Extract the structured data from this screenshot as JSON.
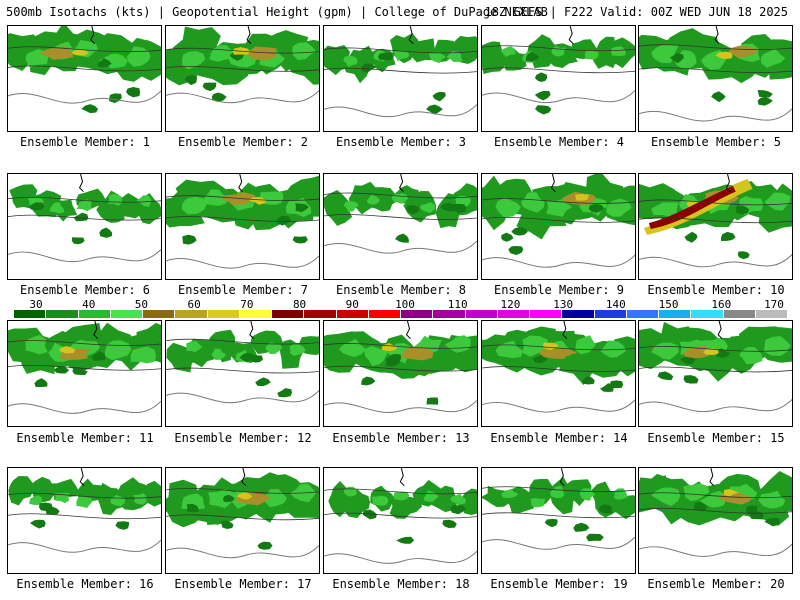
{
  "header": {
    "left": "500mb Isotachs (kts) | Geopotential Height (gpm) | College of DuPage NEXLAB",
    "right": "18Z GEFS | F222 Valid: 00Z WED JUN 18 2025"
  },
  "colorbar": {
    "labels": [
      "30",
      "40",
      "50",
      "60",
      "70",
      "80",
      "90",
      "100",
      "110",
      "120",
      "130",
      "140",
      "150",
      "160",
      "170"
    ],
    "colors": [
      "#006400",
      "#1a8c1a",
      "#2db82d",
      "#4fe04f",
      "#8b6a14",
      "#b8a22a",
      "#d9cc1c",
      "#ffff33",
      "#7a0000",
      "#a30000",
      "#cc0000",
      "#ff0000",
      "#8b008b",
      "#a000a0",
      "#c400c4",
      "#e000e0",
      "#ff00ff",
      "#0000a0",
      "#1a3ce0",
      "#3377ff",
      "#1ab0e6",
      "#33ddff",
      "#888888",
      "#bbbbbb"
    ]
  },
  "panels": [
    {
      "caption": "Ensemble Member: 1",
      "intensity": "moderate"
    },
    {
      "caption": "Ensemble Member: 2",
      "intensity": "moderate"
    },
    {
      "caption": "Ensemble Member: 3",
      "intensity": "weak"
    },
    {
      "caption": "Ensemble Member: 4",
      "intensity": "weak"
    },
    {
      "caption": "Ensemble Member: 5",
      "intensity": "moderate"
    },
    {
      "caption": "Ensemble Member: 6",
      "intensity": "weak"
    },
    {
      "caption": "Ensemble Member: 7",
      "intensity": "moderate"
    },
    {
      "caption": "Ensemble Member: 8",
      "intensity": "weak"
    },
    {
      "caption": "Ensemble Member: 9",
      "intensity": "moderate"
    },
    {
      "caption": "Ensemble Member: 10",
      "intensity": "strong"
    },
    {
      "caption": "Ensemble Member: 11",
      "intensity": "moderate"
    },
    {
      "caption": "Ensemble Member: 12",
      "intensity": "weak"
    },
    {
      "caption": "Ensemble Member: 13",
      "intensity": "moderate"
    },
    {
      "caption": "Ensemble Member: 14",
      "intensity": "moderate"
    },
    {
      "caption": "Ensemble Member: 15",
      "intensity": "moderate"
    },
    {
      "caption": "Ensemble Member: 16",
      "intensity": "weak"
    },
    {
      "caption": "Ensemble Member: 17",
      "intensity": "moderate"
    },
    {
      "caption": "Ensemble Member: 18",
      "intensity": "weak"
    },
    {
      "caption": "Ensemble Member: 19",
      "intensity": "weak"
    },
    {
      "caption": "Ensemble Member: 20",
      "intensity": "moderate"
    }
  ]
}
